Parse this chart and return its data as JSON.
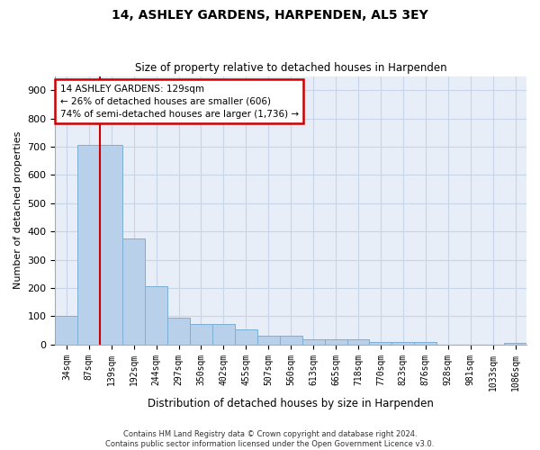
{
  "title": "14, ASHLEY GARDENS, HARPENDEN, AL5 3EY",
  "subtitle": "Size of property relative to detached houses in Harpenden",
  "xlabel": "Distribution of detached houses by size in Harpenden",
  "ylabel": "Number of detached properties",
  "categories": [
    "34sqm",
    "87sqm",
    "139sqm",
    "192sqm",
    "244sqm",
    "297sqm",
    "350sqm",
    "402sqm",
    "455sqm",
    "507sqm",
    "560sqm",
    "613sqm",
    "665sqm",
    "718sqm",
    "770sqm",
    "823sqm",
    "876sqm",
    "928sqm",
    "981sqm",
    "1033sqm",
    "1086sqm"
  ],
  "values": [
    100,
    706,
    706,
    375,
    206,
    96,
    72,
    72,
    55,
    30,
    30,
    20,
    20,
    20,
    10,
    10,
    8,
    0,
    0,
    0,
    5
  ],
  "bar_color": "#b8d0ea",
  "bar_edge_color": "#7bafd4",
  "grid_color": "#c8d4e8",
  "background_color": "#e8eef8",
  "annotation_text": "14 ASHLEY GARDENS: 129sqm\n← 26% of detached houses are smaller (606)\n74% of semi-detached houses are larger (1,736) →",
  "annotation_box_facecolor": "#ffffff",
  "annotation_box_edgecolor": "#cc0000",
  "vline_color": "#cc0000",
  "vline_position": 1.5,
  "footer": "Contains HM Land Registry data © Crown copyright and database right 2024.\nContains public sector information licensed under the Open Government Licence v3.0.",
  "ylim": [
    0,
    950
  ],
  "yticks": [
    0,
    100,
    200,
    300,
    400,
    500,
    600,
    700,
    800,
    900
  ],
  "fig_width": 6.0,
  "fig_height": 5.0
}
